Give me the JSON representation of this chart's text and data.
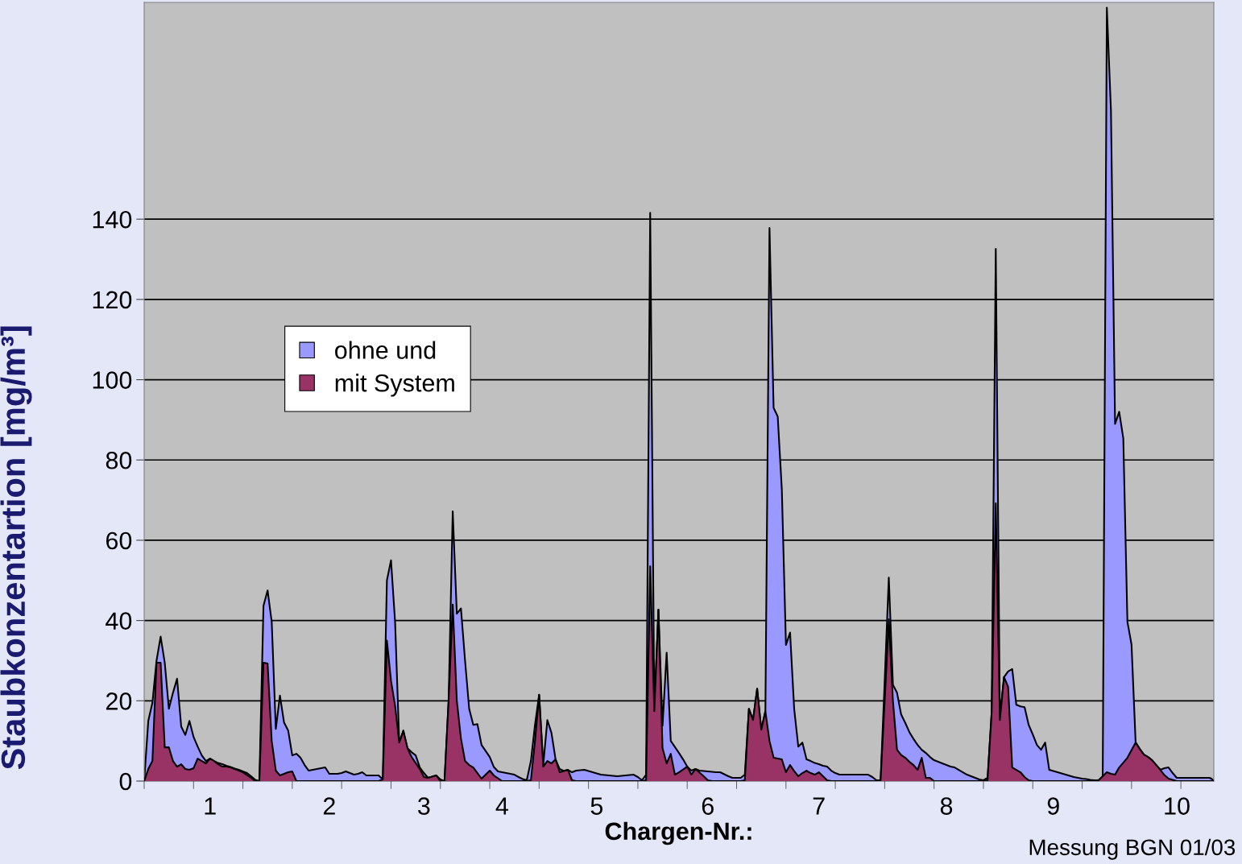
{
  "chart_data": {
    "type": "area",
    "ylabel": "Staubkonzentartion [mg/m³]",
    "xlabel": "Chargen-Nr.:",
    "annotations": [
      "Messung BGN 01/03"
    ],
    "ylim": [
      0,
      194
    ],
    "yticks": [
      0,
      20,
      40,
      60,
      80,
      100,
      120,
      140
    ],
    "grid": "y",
    "legend": "top left",
    "categories": [
      null,
      null,
      null,
      null,
      null,
      null,
      null,
      null,
      null,
      null,
      null,
      null,
      null,
      null,
      null,
      null,
      "1",
      null,
      null,
      null,
      null,
      null,
      null,
      null,
      null,
      null,
      null,
      null,
      null,
      null,
      null,
      null,
      null,
      null,
      null,
      null,
      null,
      null,
      null,
      null,
      null,
      null,
      null,
      null,
      null,
      "2",
      null,
      null,
      null,
      null,
      null,
      null,
      null,
      null,
      null,
      null,
      null,
      null,
      null,
      null,
      null,
      null,
      null,
      null,
      null,
      null,
      null,
      null,
      "3",
      null,
      null,
      null,
      null,
      null,
      null,
      null,
      null,
      null,
      null,
      null,
      null,
      null,
      null,
      null,
      null,
      null,
      null,
      "4",
      null,
      null,
      null,
      null,
      null,
      null,
      null,
      null,
      null,
      null,
      null,
      null,
      null,
      null,
      null,
      null,
      null,
      null,
      null,
      null,
      null,
      null,
      "5",
      null,
      null,
      null,
      null,
      null,
      null,
      null,
      null,
      null,
      null,
      null,
      null,
      null,
      null,
      null,
      null,
      null,
      null,
      null,
      null,
      null,
      null,
      null,
      null,
      null,
      null,
      "6",
      null,
      null,
      null,
      null,
      null,
      null,
      null,
      null,
      null,
      null,
      null,
      null,
      null,
      null,
      null,
      null,
      null,
      null,
      null,
      null,
      null,
      null,
      null,
      null,
      null,
      null,
      "7",
      null,
      null,
      null,
      null,
      null,
      null,
      null,
      null,
      null,
      null,
      null,
      null,
      null,
      null,
      null,
      null,
      null,
      null,
      null,
      null,
      null,
      null,
      null,
      null,
      null,
      null,
      null,
      null,
      null,
      null,
      "8",
      null,
      null,
      null,
      null,
      null,
      null,
      null,
      null,
      null,
      null,
      null,
      null,
      null,
      null,
      null,
      null,
      null,
      null,
      null,
      null,
      null,
      null,
      null,
      null,
      null,
      "9",
      null,
      null,
      null,
      null,
      null,
      null,
      null,
      null,
      null,
      null,
      null,
      null,
      null,
      null,
      null,
      null,
      null,
      null,
      null,
      null,
      null,
      null,
      null,
      null,
      null,
      null,
      null,
      null,
      null,
      "10",
      null,
      null,
      null,
      null,
      null,
      null,
      null,
      null,
      null
    ],
    "series": [
      {
        "name": "ohne und",
        "color": "#9999ff",
        "values": [
          0,
          15,
          19.5,
          30,
          36,
          29.5,
          18,
          22,
          25.5,
          13.6,
          11.5,
          15,
          11,
          8.6,
          6.4,
          5,
          5.6,
          5,
          4.5,
          4.2,
          3.8,
          3.5,
          3.1,
          2.8,
          2.4,
          2,
          1.2,
          0.3,
          0,
          43.7,
          47.5,
          39.7,
          13,
          21.3,
          14.6,
          12.6,
          6.4,
          6.8,
          5.8,
          4,
          2.6,
          2.8,
          3,
          3.2,
          3.4,
          1.8,
          1.8,
          1.8,
          2,
          2.4,
          2,
          1.6,
          1.8,
          2.2,
          1.4,
          1.4,
          1.4,
          1.4,
          0.4,
          50,
          55,
          39.5,
          9.6,
          12.6,
          8.2,
          7.2,
          6.4,
          3.4,
          2,
          0.8,
          1.1,
          1.4,
          0.4,
          0,
          20,
          67.2,
          41.7,
          43,
          30,
          18,
          14,
          14.2,
          9,
          7.5,
          6,
          3.5,
          2.4,
          2.2,
          2,
          1.8,
          1.6,
          1,
          0.5,
          0.2,
          5,
          14,
          21.5,
          4,
          15.2,
          12,
          5.4,
          3,
          2.5,
          2.8,
          2.2,
          2.6,
          2.7,
          2.8,
          2.5,
          2.2,
          1.9,
          1.6,
          1.5,
          1.4,
          1.3,
          1.2,
          1.3,
          1.4,
          1.5,
          1.6,
          1,
          0.2,
          1.6,
          141.6,
          17.4,
          42.7,
          13.8,
          32,
          10,
          8.5,
          7,
          5.4,
          3.6,
          2.6,
          3,
          2.6,
          2.5,
          2.4,
          2.3,
          2.2,
          2.2,
          1.7,
          1.2,
          0.8,
          0.8,
          0.8,
          1.6,
          18,
          15.2,
          23,
          12.8,
          17.4,
          137.8,
          93,
          90.8,
          72.6,
          33.9,
          37,
          18,
          8.6,
          9.6,
          5.4,
          5,
          4.5,
          4.2,
          3.8,
          3.6,
          2.6,
          2,
          1.6,
          1.6,
          1.6,
          1.6,
          1.6,
          1.6,
          1.6,
          1.6,
          1,
          0.2,
          0.2,
          25,
          50.7,
          24,
          22,
          16.6,
          14.5,
          12.2,
          10.5,
          9,
          7.8,
          7,
          6,
          5.2,
          4.8,
          4.4,
          4,
          3.6,
          3.4,
          2.8,
          2.2,
          1.6,
          1.2,
          0.8,
          0.4,
          0.2,
          0.8,
          17,
          132.6,
          15.8,
          25.9,
          27.3,
          27.9,
          19,
          18.6,
          18.4,
          14,
          11.6,
          9,
          7.8,
          9.6,
          2.8,
          2.5,
          2.2,
          1.9,
          1.6,
          1.3,
          1,
          0.8,
          0.6,
          0.5,
          0.3,
          0.2,
          0.2,
          1.2,
          192.7,
          167,
          89,
          92,
          85.4,
          39.7,
          34,
          9.6,
          8,
          6.6,
          6,
          5.2,
          4,
          2.8,
          3.2,
          3.4,
          2,
          0.8,
          0.8,
          0.8,
          0.8,
          0.8,
          0.8,
          0.8,
          0.8,
          0.8,
          0.2
        ]
      },
      {
        "name": "mit System",
        "color": "#993366",
        "values": [
          0,
          3,
          5,
          29.5,
          29.5,
          8.4,
          8.4,
          5,
          3.6,
          4.2,
          3,
          2.8,
          3.2,
          5.6,
          5,
          4.4,
          5.6,
          5,
          4.2,
          3.6,
          3.6,
          3.4,
          3,
          2.6,
          2.2,
          1.5,
          0.8,
          0,
          0,
          29.5,
          29.3,
          10,
          2.6,
          1.4,
          1.8,
          2.2,
          2.4,
          0,
          0,
          0,
          0,
          0,
          0,
          0,
          0,
          0,
          0,
          0,
          0,
          0,
          0,
          0,
          0,
          0,
          0,
          0,
          0,
          0,
          0.4,
          35,
          25,
          18.7,
          9.6,
          12.4,
          8.2,
          6,
          4.5,
          3,
          1,
          0.8,
          1.1,
          1.4,
          0,
          0,
          20,
          44,
          20,
          10.6,
          5,
          4,
          3.4,
          2,
          0.6,
          1.6,
          2.6,
          1.4,
          0.7,
          0,
          0,
          0,
          0,
          0,
          0,
          0,
          0.2,
          10,
          21.5,
          3.6,
          5,
          4.4,
          5.4,
          2.2,
          2.5,
          2.8,
          0.2,
          0,
          0,
          0,
          0,
          0,
          0,
          0,
          0,
          0,
          0,
          0,
          0,
          0,
          0,
          0,
          0,
          0,
          0.2,
          53.5,
          17.4,
          42.7,
          8.2,
          4.4,
          6.8,
          1.6,
          2.2,
          2.9,
          3.6,
          1.6,
          3,
          2.1,
          1.2,
          0.2,
          0,
          0,
          0,
          0,
          0,
          0,
          0,
          0,
          0.2,
          18,
          15.2,
          23,
          12.8,
          17.4,
          10,
          5.8,
          5.6,
          5.4,
          2.2,
          4,
          2.5,
          1.2,
          2,
          2.6,
          2,
          1.6,
          2.2,
          1.2,
          0.2,
          0,
          0,
          0,
          0,
          0,
          0,
          0,
          0,
          0,
          0,
          0,
          0,
          0.2,
          20,
          40.3,
          20,
          7.8,
          6.5,
          5.8,
          4.8,
          4,
          2.8,
          5.8,
          0.8,
          0.8,
          0,
          0,
          0,
          0,
          0,
          0,
          0,
          0,
          0,
          0,
          0,
          0,
          0,
          0.2,
          17,
          69.2,
          15.2,
          25.9,
          23.5,
          3.4,
          2.8,
          2.2,
          1,
          0.2,
          0,
          0,
          0,
          0,
          0,
          0,
          0,
          0,
          0,
          0,
          0,
          0,
          0,
          0,
          0,
          0,
          0.2,
          1.2,
          2.2,
          1.8,
          1.6,
          3.4,
          4.6,
          5.8,
          7.7,
          9.6,
          8,
          6.6,
          6,
          5.2,
          4,
          2.8,
          1.5,
          0.6,
          0.3,
          0,
          0,
          0,
          0,
          0,
          0,
          0,
          0,
          0,
          0
        ]
      }
    ]
  }
}
